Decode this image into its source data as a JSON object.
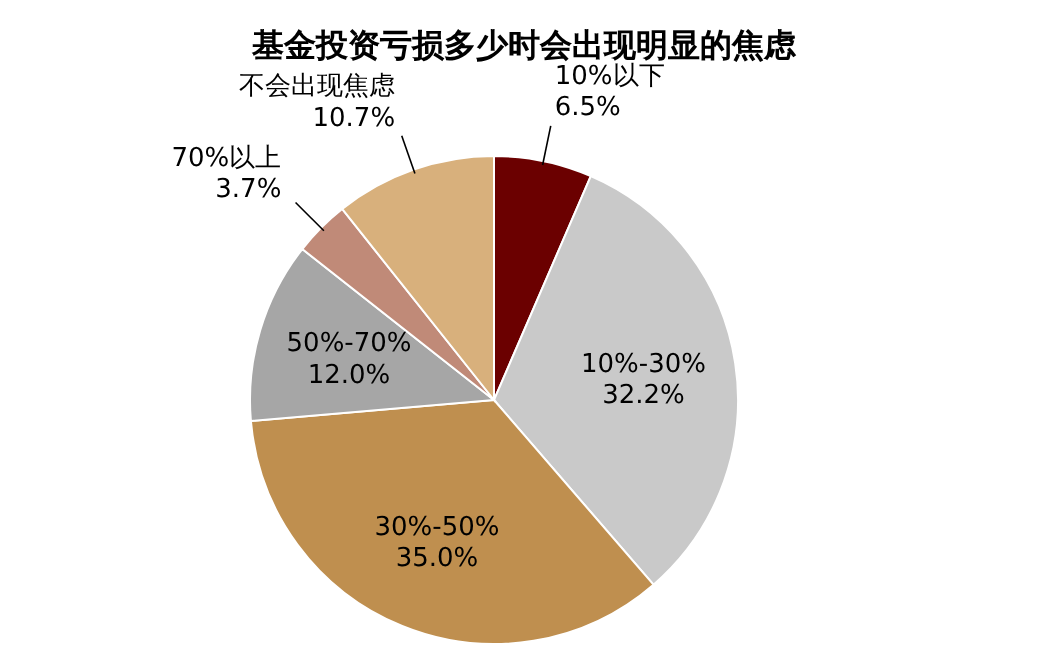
{
  "chart_data": {
    "type": "pie",
    "title": "基金投资亏损多少时会出现明显的焦虑",
    "categories": [
      "10%以下",
      "10%-30%",
      "30%-50%",
      "50%-70%",
      "70%以上",
      "不会出现焦虑"
    ],
    "values": [
      6.5,
      32.2,
      35.0,
      12.0,
      3.7,
      10.7
    ],
    "value_labels": [
      "6.5%",
      "32.2%",
      "35.0%",
      "12.0%",
      "3.7%",
      "10.7%"
    ],
    "colors": [
      "#6b0000",
      "#c9c9c9",
      "#bf8f4f",
      "#a6a6a6",
      "#c08a78",
      "#d8b07c"
    ]
  }
}
